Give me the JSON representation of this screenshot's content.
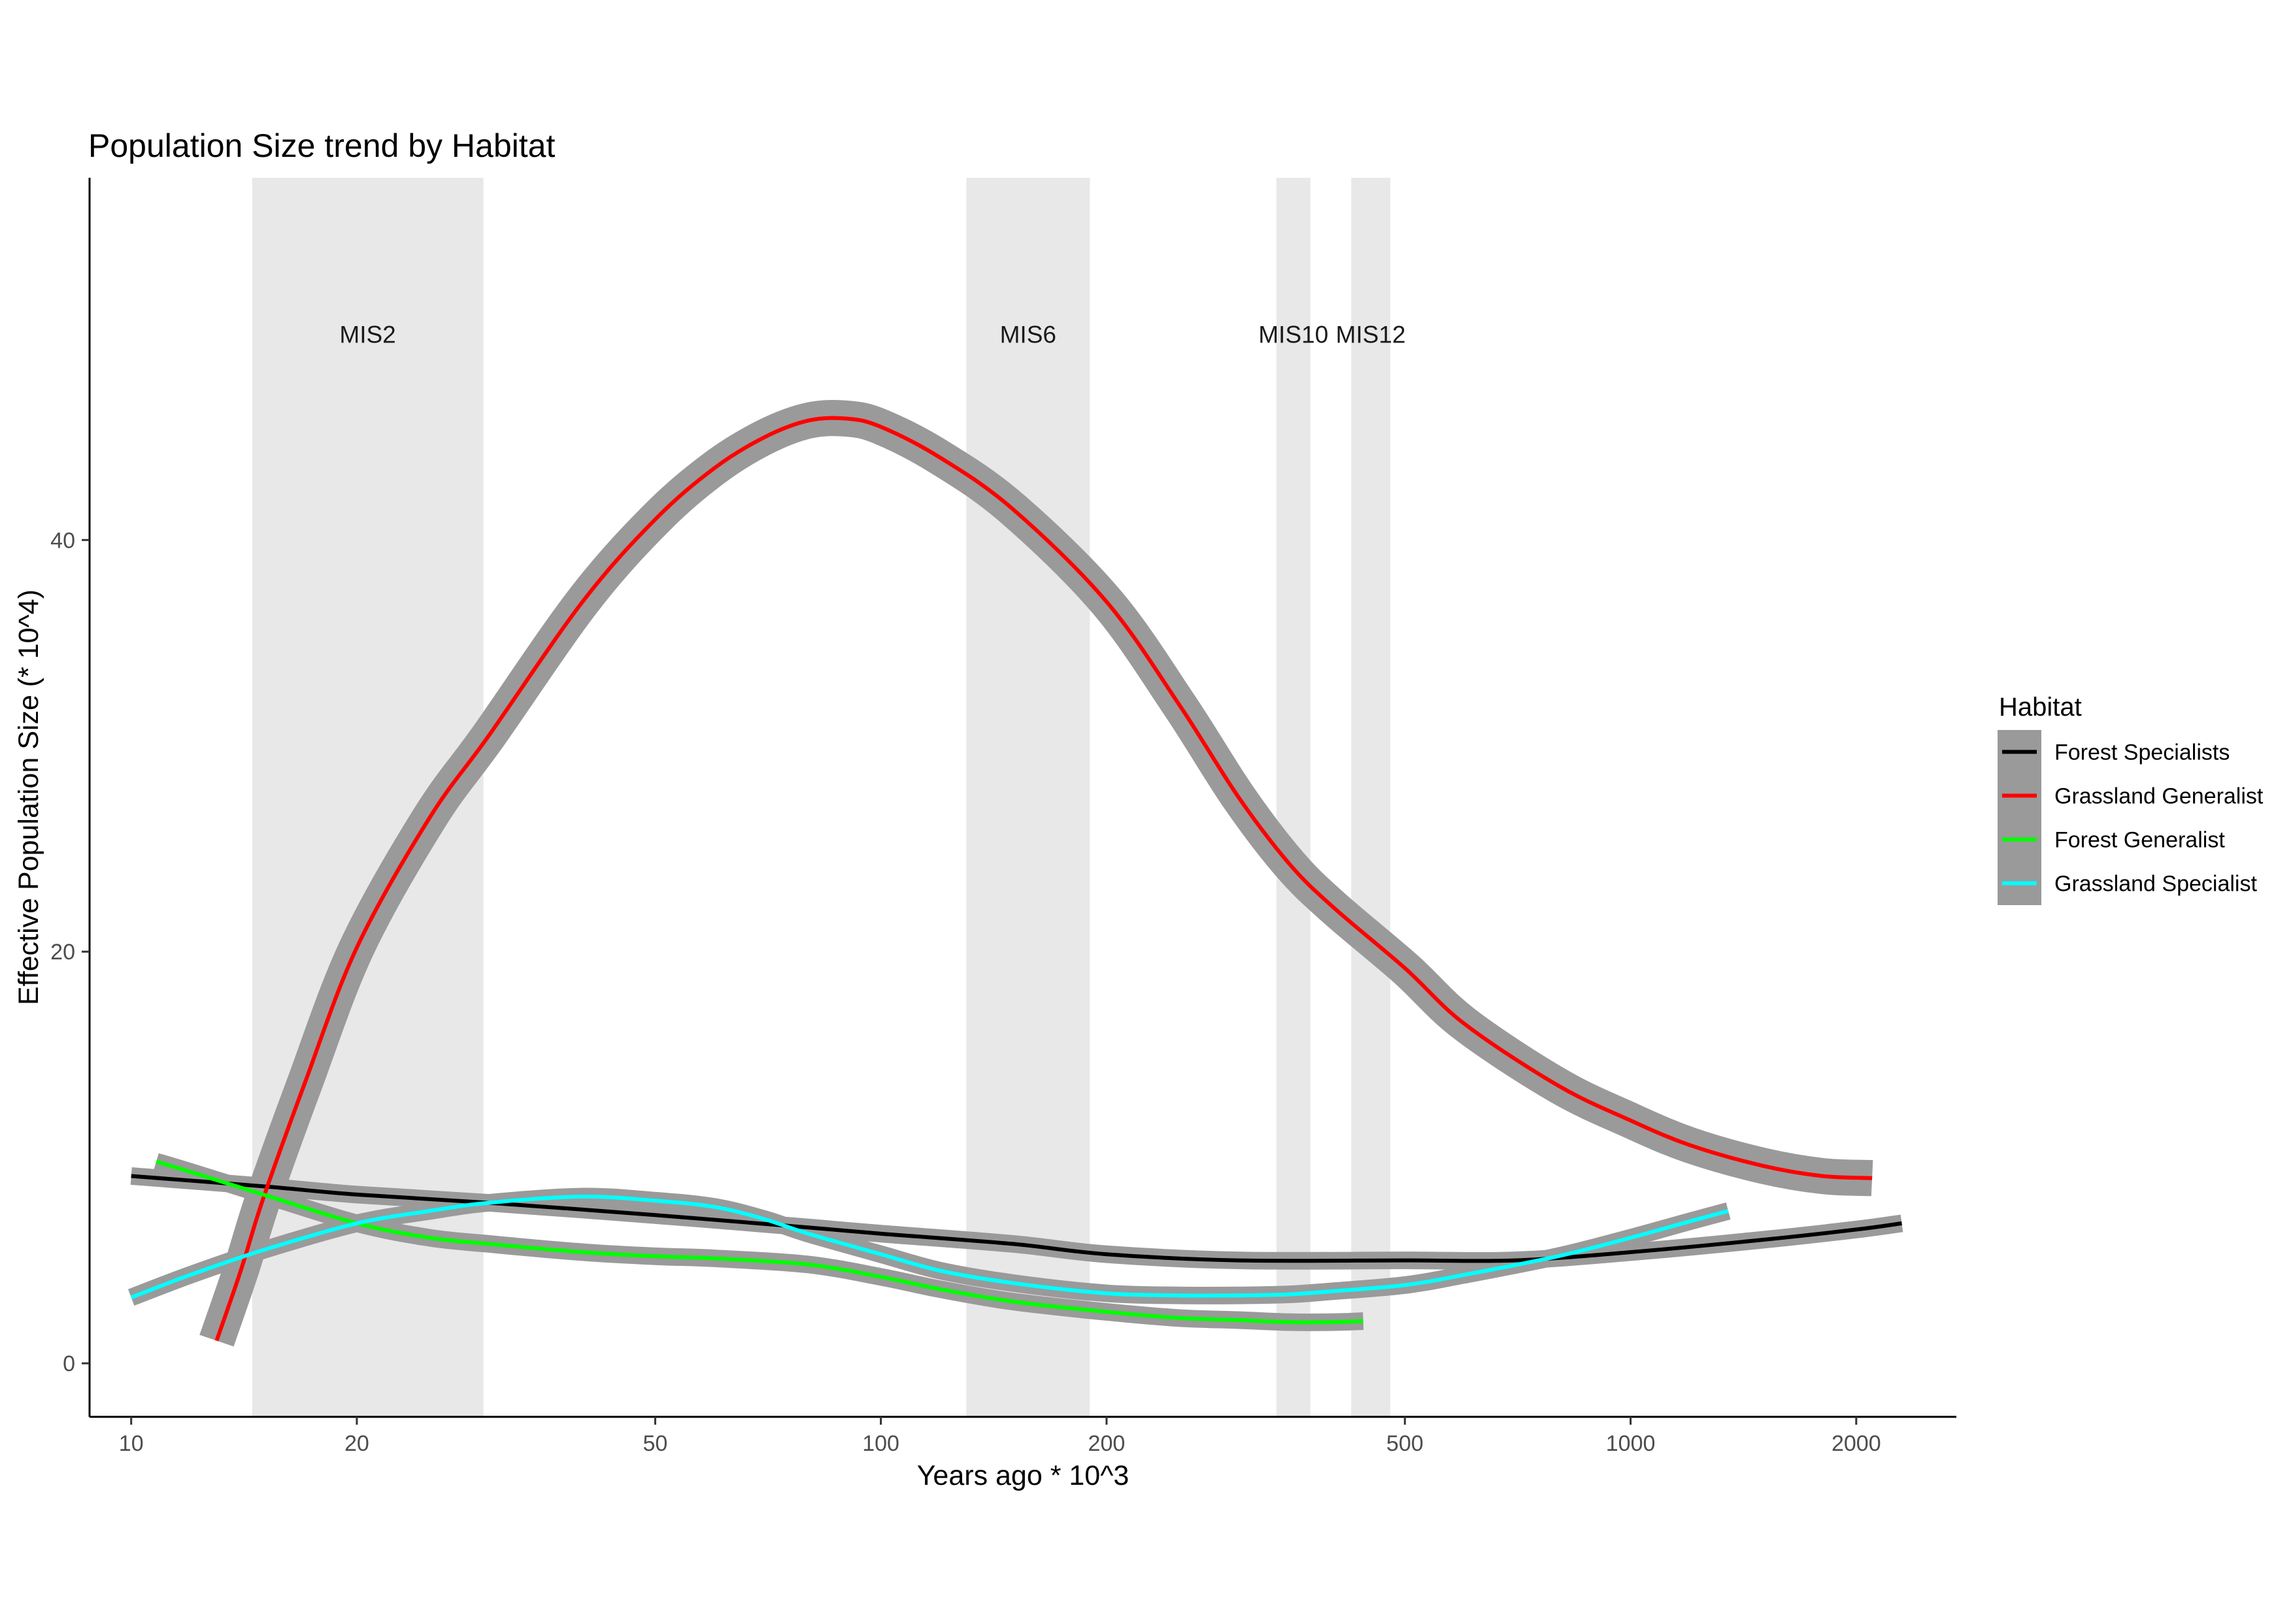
{
  "chart_data": {
    "type": "line",
    "title": "Population Size trend by Habitat",
    "xlabel": "Years ago * 10^3",
    "ylabel": "Effective Population Size (* 10^4)",
    "x_scale": "log10",
    "xlim": [
      8.8,
      2720
    ],
    "ylim": [
      -2.6,
      57.6
    ],
    "x_ticks": [
      10,
      20,
      50,
      100,
      200,
      500,
      1000,
      2000
    ],
    "x_tick_labels": [
      "10",
      "20",
      "50",
      "100",
      "200",
      "500",
      "1000",
      "2000"
    ],
    "y_ticks": [
      0,
      20,
      40
    ],
    "y_tick_labels": [
      "0",
      "20",
      "40"
    ],
    "grid": false,
    "legend": {
      "title": "Habitat",
      "position": "right",
      "entries": [
        "Forest Specialists",
        "Grassland Generalist",
        "Forest Generalist",
        "Grassland Specialist"
      ]
    },
    "bands": [
      {
        "label": "MIS2",
        "x_start": 14.5,
        "x_end": 29.5
      },
      {
        "label": "MIS6",
        "x_start": 130,
        "x_end": 190
      },
      {
        "label": "MIS10",
        "x_start": 337,
        "x_end": 374
      },
      {
        "label": "MIS12",
        "x_start": 424,
        "x_end": 478
      }
    ],
    "band_label_y": 50,
    "series": [
      {
        "name": "Forest Specialists",
        "color": "#000000",
        "ribbon": 0.3,
        "x": [
          10,
          15,
          20,
          30,
          50,
          80,
          100,
          150,
          200,
          300,
          500,
          700,
          1000,
          1500,
          2000,
          2300
        ],
        "y": [
          9.1,
          8.6,
          8.2,
          7.8,
          7.2,
          6.6,
          6.3,
          5.8,
          5.3,
          5.0,
          5.0,
          5.0,
          5.4,
          6.0,
          6.5,
          6.8
        ]
      },
      {
        "name": "Grassland Generalist",
        "color": "#ff0000",
        "ribbon": 0.75,
        "x": [
          13,
          14,
          15,
          17,
          20,
          25,
          30,
          40,
          50,
          60,
          70,
          80,
          90,
          100,
          120,
          150,
          200,
          250,
          300,
          350,
          400,
          500,
          600,
          800,
          1000,
          1200,
          1500,
          1800,
          2100
        ],
        "y": [
          1.1,
          4.5,
          8.0,
          13.5,
          20.2,
          26.5,
          30.5,
          37.0,
          41.0,
          43.5,
          45.0,
          45.8,
          45.9,
          45.5,
          44.0,
          41.5,
          37.0,
          32.0,
          27.5,
          24.3,
          22.2,
          19.2,
          16.5,
          13.5,
          11.8,
          10.6,
          9.6,
          9.1,
          9.0
        ]
      },
      {
        "name": "Forest Generalist",
        "color": "#00ff00",
        "ribbon": 0.3,
        "x": [
          10.8,
          12,
          15,
          20,
          25,
          30,
          40,
          50,
          60,
          80,
          100,
          120,
          150,
          200,
          250,
          300,
          350,
          400,
          440
        ],
        "y": [
          9.8,
          9.3,
          8.2,
          6.8,
          6.1,
          5.8,
          5.4,
          5.2,
          5.1,
          4.8,
          4.2,
          3.6,
          3.0,
          2.5,
          2.2,
          2.1,
          2.0,
          2.0,
          2.05
        ]
      },
      {
        "name": "Grassland Specialist",
        "color": "#00ffff",
        "ribbon": 0.3,
        "x": [
          10,
          12,
          15,
          20,
          25,
          30,
          40,
          50,
          60,
          70,
          80,
          100,
          120,
          150,
          200,
          250,
          300,
          350,
          400,
          500,
          600,
          800,
          1000,
          1200,
          1350
        ],
        "y": [
          3.2,
          4.3,
          5.5,
          6.8,
          7.4,
          7.8,
          8.1,
          7.9,
          7.6,
          7.0,
          6.3,
          5.3,
          4.5,
          3.9,
          3.4,
          3.3,
          3.3,
          3.35,
          3.5,
          3.8,
          4.3,
          5.2,
          6.1,
          6.9,
          7.4
        ]
      }
    ]
  }
}
